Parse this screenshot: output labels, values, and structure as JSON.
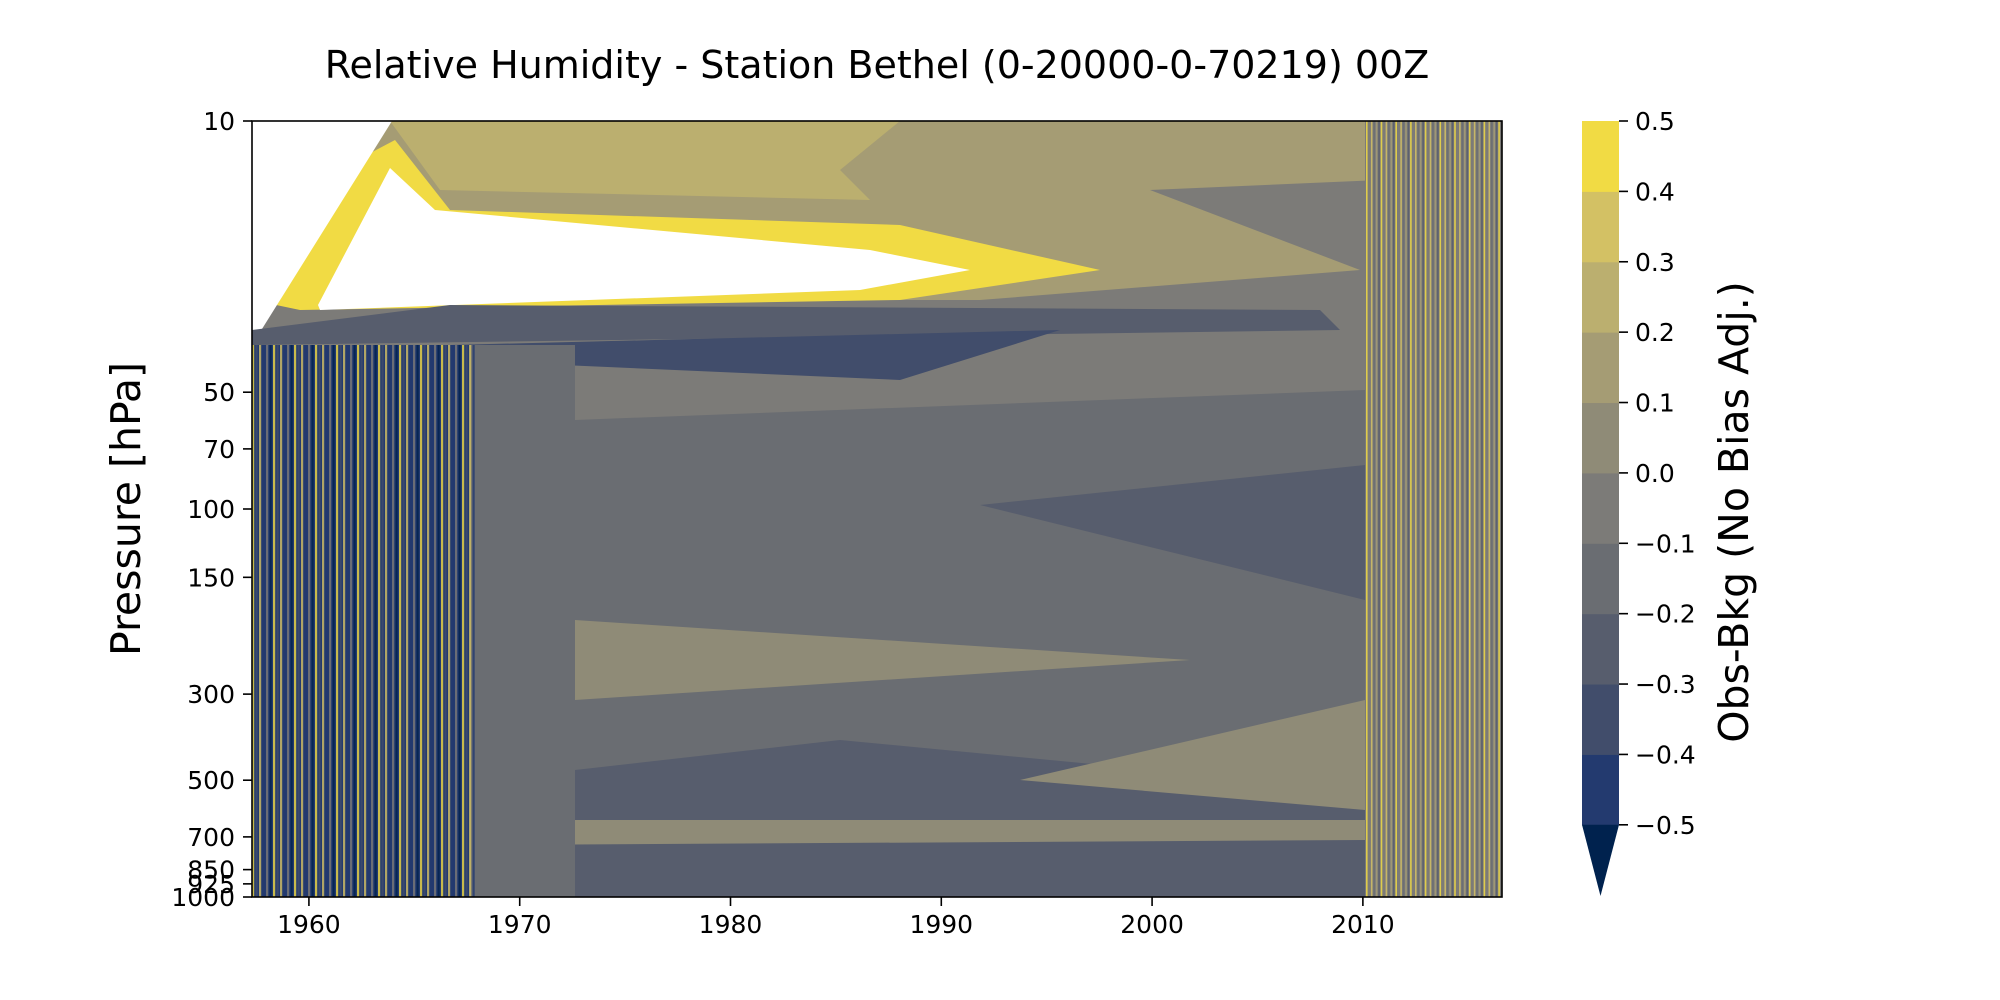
{
  "chart_data": {
    "type": "heatmap",
    "title": "Relative Humidity - Station Bethel (0-20000-0-70219) 00Z",
    "xlabel": "",
    "ylabel": "Pressure [hPa]",
    "xlim": [
      1957.3,
      2016.6
    ],
    "x_ticks": [
      1960,
      1970,
      1980,
      1990,
      2000,
      2010
    ],
    "y_axis": "log-pressure, inverted",
    "y_ticks": [
      10,
      50,
      70,
      100,
      150,
      300,
      500,
      700,
      850,
      925,
      1000
    ],
    "colorbar": {
      "label": "Obs-Bkg (No Bias Adj.)",
      "ticks": [
        0.5,
        0.4,
        0.3,
        0.2,
        0.1,
        0.0,
        -0.1,
        -0.2,
        -0.3,
        -0.4,
        -0.5
      ],
      "tick_labels": [
        "0.5",
        "0.4",
        "0.3",
        "0.2",
        "0.1",
        "0.0",
        "−0.1",
        "−0.2",
        "−0.3",
        "−0.4",
        "−0.5"
      ],
      "extend": "min",
      "colormap": "cividis",
      "colors": [
        "#00224e",
        "#233a6f",
        "#414d6b",
        "#575d6d",
        "#6a6d72",
        "#7c7b78",
        "#8f8b77",
        "#a59c74",
        "#bbaf6f",
        "#d3c164",
        "#f1db44"
      ]
    },
    "regions": [
      {
        "desc": "no data (stratosphere, early years)",
        "value": null
      },
      {
        "desc": "upper stratosphere 1965-2010",
        "value": 0.25
      },
      {
        "desc": "tropopause band",
        "value": 0.45
      },
      {
        "desc": "troposphere 1973-2010",
        "value": -0.05
      },
      {
        "desc": "troposphere 1957-1972 (oscillating)",
        "value": -0.3
      },
      {
        "desc": "2010-2016 (oscillating)",
        "value": 0.1
      }
    ]
  }
}
